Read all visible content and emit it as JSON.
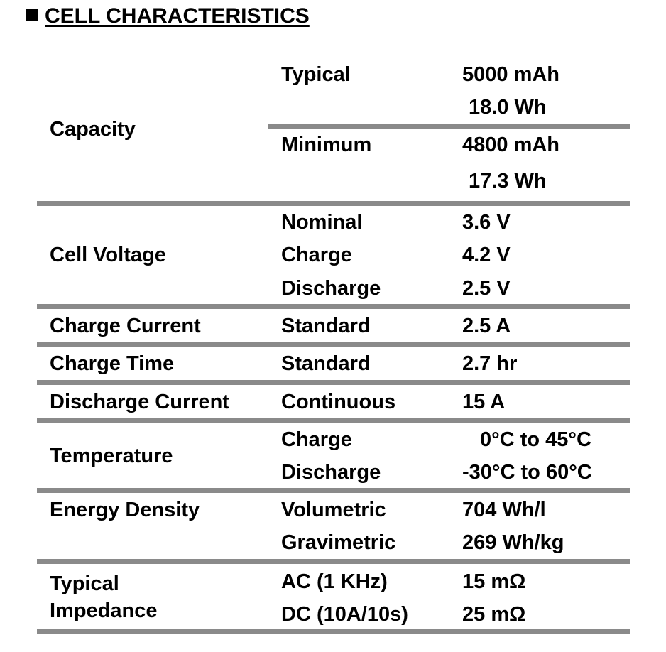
{
  "title": "CELL CHARACTERISTICS",
  "rows": [
    {
      "param": "Capacity",
      "conditions": [
        "Typical",
        "Minimum"
      ],
      "values": [
        "5000 mAh",
        "18.0 Wh",
        "4800 mAh",
        "17.3 Wh"
      ]
    },
    {
      "param": "Cell Voltage",
      "conditions": [
        "Nominal",
        "Charge",
        "Discharge"
      ],
      "values": [
        "3.6 V",
        "4.2 V",
        "2.5 V"
      ]
    },
    {
      "param": "Charge Current",
      "conditions": [
        "Standard"
      ],
      "values": [
        "2.5 A"
      ]
    },
    {
      "param": "Charge Time",
      "conditions": [
        "Standard"
      ],
      "values": [
        "2.7 hr"
      ]
    },
    {
      "param": "Discharge Current",
      "conditions": [
        "Continuous"
      ],
      "values": [
        "15 A"
      ]
    },
    {
      "param": "Temperature",
      "conditions": [
        "Charge",
        "Discharge"
      ],
      "values": [
        "0°C to 45°C",
        "-30°C to 60°C"
      ]
    },
    {
      "param": "Energy Density",
      "conditions": [
        "Volumetric",
        "Gravimetric"
      ],
      "values": [
        "704 Wh/l",
        "269 Wh/kg"
      ]
    },
    {
      "param_lines": [
        "Typical",
        "Impedance"
      ],
      "conditions": [
        "AC (1 KHz)",
        "DC (10A/10s)"
      ],
      "values": [
        "15 mΩ",
        "25 mΩ"
      ]
    }
  ]
}
